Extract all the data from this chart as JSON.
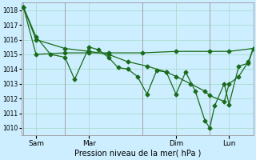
{
  "xlabel": "Pression niveau de la mer( hPa )",
  "background_color": "#cceeff",
  "grid_color": "#aaddcc",
  "line_color": "#1a6b1a",
  "ylim": [
    1009.5,
    1018.5
  ],
  "yticks": [
    1010,
    1011,
    1012,
    1013,
    1014,
    1015,
    1016,
    1017,
    1018
  ],
  "xlim": [
    0,
    24
  ],
  "xtick_positions": [
    1.5,
    7.0,
    16.0,
    21.5
  ],
  "xtick_labels": [
    "Sam",
    "Mar",
    "Dim",
    "Lun"
  ],
  "vline_positions": [
    0.2,
    4.5,
    12.5,
    19.5
  ],
  "series1_x": [
    0.2,
    1.5,
    3.0,
    4.5,
    5.5,
    7.0,
    8.0,
    9.0,
    10.0,
    11.0,
    12.0,
    13.0,
    14.0,
    15.0,
    16.0,
    17.0,
    18.0,
    19.0,
    19.5,
    20.0,
    21.0,
    21.5,
    22.5,
    23.5,
    24.0
  ],
  "series1_y": [
    1018.2,
    1016.2,
    1015.0,
    1014.8,
    1013.3,
    1015.5,
    1015.3,
    1014.8,
    1014.1,
    1014.0,
    1013.5,
    1012.3,
    1013.9,
    1013.8,
    1012.3,
    1013.8,
    1012.5,
    1010.5,
    1010.0,
    1011.5,
    1013.0,
    1011.6,
    1014.2,
    1014.4,
    1015.4
  ],
  "series2_x": [
    0.2,
    1.5,
    4.5,
    7.0,
    9.0,
    12.5,
    16.0,
    19.5,
    21.5,
    24.0
  ],
  "series2_y": [
    1018.2,
    1015.0,
    1015.1,
    1015.1,
    1015.1,
    1015.1,
    1015.2,
    1015.2,
    1015.2,
    1015.4
  ],
  "series3_x": [
    0.2,
    1.5,
    4.5,
    7.0,
    9.0,
    11.0,
    13.0,
    15.0,
    16.0,
    17.5,
    19.0,
    19.5,
    21.0,
    21.5,
    22.5,
    23.5,
    24.0
  ],
  "series3_y": [
    1018.2,
    1016.0,
    1015.4,
    1015.2,
    1015.0,
    1014.5,
    1014.2,
    1013.8,
    1013.5,
    1013.0,
    1012.5,
    1012.2,
    1011.8,
    1013.0,
    1013.5,
    1014.5,
    1015.4
  ]
}
